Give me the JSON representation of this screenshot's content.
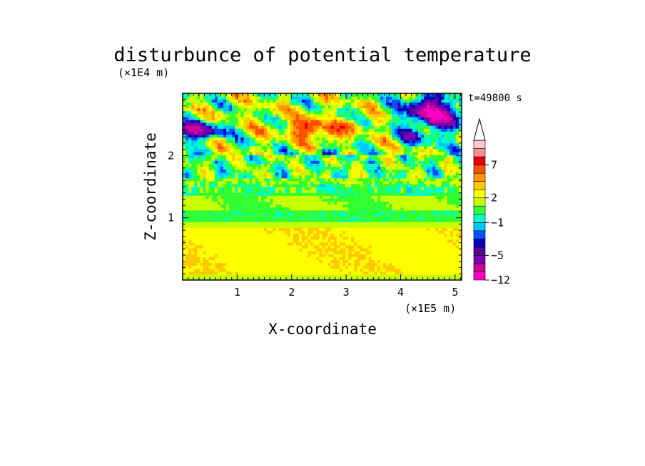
{
  "chart_data": {
    "type": "heatmap",
    "title": "disturbunce of potential temperature",
    "xlabel": "X-coordinate",
    "ylabel": "Z-coordinate",
    "x_unit": "(×1E5 m)",
    "y_unit": "(×1E4 m)",
    "time_label": "t=49800 s",
    "xlim": [
      0,
      5.12
    ],
    "ylim": [
      0,
      3.0
    ],
    "x_ticks": [
      1,
      2,
      3,
      4,
      5
    ],
    "y_ticks": [
      1,
      2
    ],
    "colorbar": {
      "ticks": [
        "7",
        "2",
        "−1",
        "−5",
        "−12"
      ],
      "levels": [
        -12,
        -9,
        -7,
        -5,
        -4,
        -3,
        -2,
        -1,
        0,
        1,
        2,
        3,
        4,
        5,
        7,
        9,
        11
      ],
      "colors": [
        "#ff00c8",
        "#d2009b",
        "#7f00b4",
        "#5a0096",
        "#0000b4",
        "#0050ff",
        "#00c8ff",
        "#00ffc8",
        "#32ff32",
        "#c8ff00",
        "#ffff00",
        "#ffc800",
        "#ff9600",
        "#ff5000",
        "#e60000",
        "#ff8c96",
        "#ffc8c8"
      ],
      "extend_top": true
    }
  }
}
